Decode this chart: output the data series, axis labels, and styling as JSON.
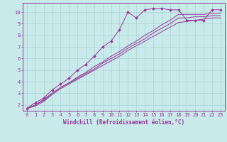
{
  "background_color": "#c8eaea",
  "grid_color": "#aad4d4",
  "line_color": "#993399",
  "marker_color": "#993399",
  "xlabel": "Windchill (Refroidissement éolien,°C)",
  "xlim": [
    -0.5,
    23.5
  ],
  "ylim": [
    1.5,
    10.8
  ],
  "xticks": [
    0,
    1,
    2,
    3,
    4,
    5,
    6,
    7,
    8,
    9,
    10,
    11,
    12,
    13,
    14,
    15,
    16,
    17,
    18,
    19,
    20,
    21,
    22,
    23
  ],
  "yticks": [
    2,
    3,
    4,
    5,
    6,
    7,
    8,
    9,
    10
  ],
  "series": [
    {
      "x": [
        0,
        1,
        2,
        3,
        4,
        5,
        6,
        7,
        8,
        9,
        10,
        11,
        12,
        13,
        14,
        15,
        16,
        17,
        18,
        19,
        20,
        21,
        22,
        23
      ],
      "y": [
        1.7,
        2.2,
        2.6,
        3.3,
        3.8,
        4.3,
        5.0,
        5.5,
        6.2,
        7.0,
        7.5,
        8.5,
        10.0,
        9.5,
        10.2,
        10.3,
        10.3,
        10.2,
        10.2,
        9.3,
        9.3,
        9.3,
        10.2,
        10.2
      ],
      "with_markers": true
    },
    {
      "x": [
        0,
        1,
        2,
        3,
        4,
        5,
        6,
        7,
        8,
        9,
        10,
        11,
        12,
        13,
        14,
        15,
        16,
        17,
        18,
        19,
        20,
        21,
        22,
        23
      ],
      "y": [
        1.7,
        2.0,
        2.5,
        3.0,
        3.5,
        3.9,
        4.4,
        4.8,
        5.3,
        5.7,
        6.2,
        6.6,
        7.1,
        7.5,
        8.0,
        8.4,
        8.9,
        9.3,
        9.8,
        9.8,
        9.8,
        9.8,
        9.9,
        9.9
      ],
      "with_markers": false
    },
    {
      "x": [
        0,
        1,
        2,
        3,
        4,
        5,
        6,
        7,
        8,
        9,
        10,
        11,
        12,
        13,
        14,
        15,
        16,
        17,
        18,
        19,
        20,
        21,
        22,
        23
      ],
      "y": [
        1.7,
        2.0,
        2.4,
        3.0,
        3.5,
        3.9,
        4.3,
        4.7,
        5.1,
        5.6,
        6.0,
        6.4,
        6.9,
        7.3,
        7.7,
        8.2,
        8.6,
        9.0,
        9.5,
        9.5,
        9.6,
        9.6,
        9.7,
        9.7
      ],
      "with_markers": false
    },
    {
      "x": [
        0,
        1,
        2,
        3,
        4,
        5,
        6,
        7,
        8,
        9,
        10,
        11,
        12,
        13,
        14,
        15,
        16,
        17,
        18,
        19,
        20,
        21,
        22,
        23
      ],
      "y": [
        1.7,
        1.9,
        2.3,
        2.9,
        3.4,
        3.8,
        4.2,
        4.6,
        5.0,
        5.4,
        5.8,
        6.2,
        6.7,
        7.1,
        7.5,
        7.9,
        8.3,
        8.7,
        9.1,
        9.2,
        9.3,
        9.4,
        9.5,
        9.5
      ],
      "with_markers": false
    }
  ],
  "font_size_label": 5.5,
  "font_size_tick": 5.0,
  "fig_width": 3.2,
  "fig_height": 2.0,
  "dpi": 100
}
